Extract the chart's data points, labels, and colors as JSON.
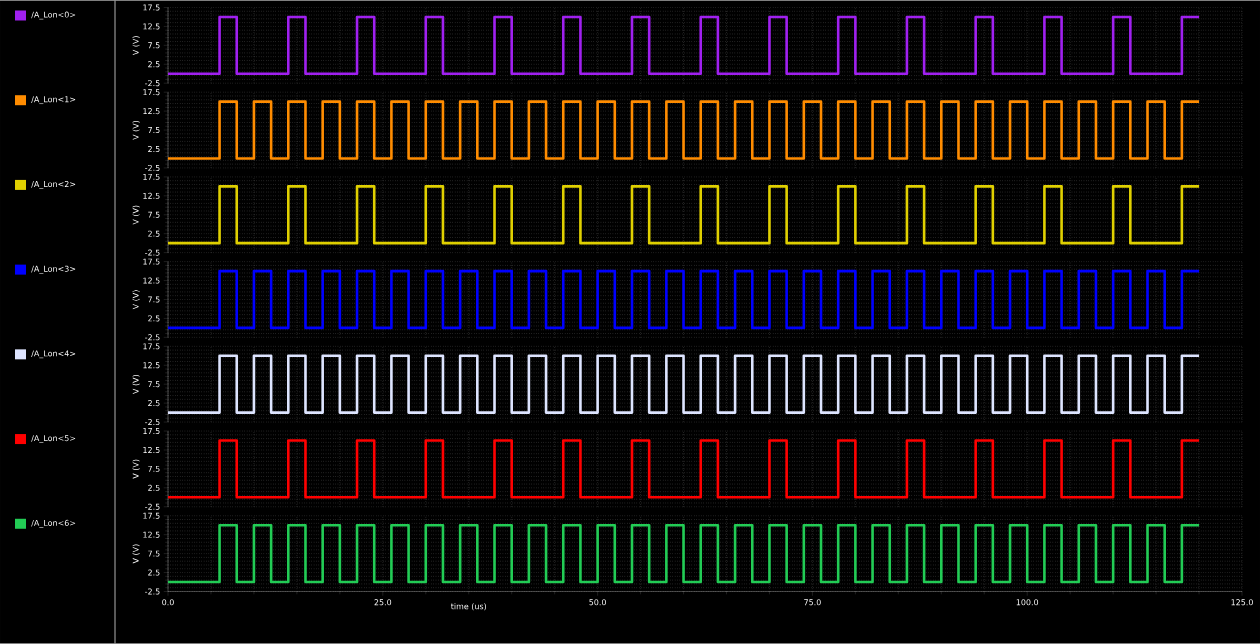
{
  "chart_data": [
    {
      "type": "step",
      "ylabel": "V (V)",
      "xlim": [
        0,
        125
      ],
      "ylim": [
        -2.5,
        17.5
      ],
      "xticks": [
        0,
        25,
        50,
        75,
        100,
        125
      ],
      "yticks": [
        -2.5,
        2.5,
        7.5,
        12.5,
        17.5
      ],
      "grid": true,
      "legend": "left",
      "tick_labels": "y",
      "series": [
        {
          "name": "/A_Lon<0>",
          "color": "#a020f0",
          "x": [
            0,
            6,
            8,
            14,
            16,
            22,
            24,
            30,
            32,
            38,
            40,
            46,
            48,
            54,
            56,
            62,
            64,
            70,
            72,
            78,
            80,
            86,
            88,
            94,
            96,
            102,
            104,
            110,
            112,
            118,
            120
          ],
          "values": [
            0,
            15,
            0,
            15,
            0,
            15,
            0,
            15,
            0,
            15,
            0,
            15,
            0,
            15,
            0,
            15,
            0,
            15,
            0,
            15,
            0,
            15,
            0,
            15,
            0,
            15,
            0,
            15,
            0,
            15,
            15
          ]
        }
      ]
    },
    {
      "type": "step",
      "ylabel": "V (V)",
      "xlim": [
        0,
        125
      ],
      "ylim": [
        -2.5,
        17.5
      ],
      "xticks": [
        0,
        25,
        50,
        75,
        100,
        125
      ],
      "yticks": [
        -2.5,
        2.5,
        7.5,
        12.5,
        17.5
      ],
      "grid": true,
      "legend": "left",
      "tick_labels": "y",
      "series": [
        {
          "name": "/A_Lon<1>",
          "color": "#ff8c00",
          "x": [
            0,
            6,
            8,
            10,
            12,
            14,
            16,
            18,
            20,
            22,
            24,
            26,
            28,
            30,
            32,
            34,
            36,
            38,
            40,
            42,
            44,
            46,
            48,
            50,
            52,
            54,
            56,
            58,
            60,
            62,
            64,
            66,
            68,
            70,
            72,
            74,
            76,
            78,
            80,
            82,
            84,
            86,
            88,
            90,
            92,
            94,
            96,
            98,
            100,
            102,
            104,
            106,
            108,
            110,
            112,
            114,
            116,
            118,
            120
          ],
          "values": [
            0,
            15,
            0,
            15,
            0,
            15,
            0,
            15,
            0,
            15,
            0,
            15,
            0,
            15,
            0,
            15,
            0,
            15,
            0,
            15,
            0,
            15,
            0,
            15,
            0,
            15,
            0,
            15,
            0,
            15,
            0,
            15,
            0,
            15,
            0,
            15,
            0,
            15,
            0,
            15,
            0,
            15,
            0,
            15,
            0,
            15,
            0,
            15,
            0,
            15,
            0,
            15,
            0,
            15,
            0,
            15,
            0,
            15,
            15
          ]
        }
      ]
    },
    {
      "type": "step",
      "ylabel": "V (V)",
      "xlim": [
        0,
        125
      ],
      "ylim": [
        -2.5,
        17.5
      ],
      "xticks": [
        0,
        25,
        50,
        75,
        100,
        125
      ],
      "yticks": [
        -2.5,
        2.5,
        7.5,
        12.5,
        17.5
      ],
      "grid": true,
      "legend": "left",
      "tick_labels": "y",
      "series": [
        {
          "name": "/A_Lon<2>",
          "color": "#e0d000",
          "x": [
            0,
            6,
            8,
            14,
            16,
            22,
            24,
            30,
            32,
            38,
            40,
            46,
            48,
            54,
            56,
            62,
            64,
            70,
            72,
            78,
            80,
            86,
            88,
            94,
            96,
            102,
            104,
            110,
            112,
            118,
            120
          ],
          "values": [
            0,
            15,
            0,
            15,
            0,
            15,
            0,
            15,
            0,
            15,
            0,
            15,
            0,
            15,
            0,
            15,
            0,
            15,
            0,
            15,
            0,
            15,
            0,
            15,
            0,
            15,
            0,
            15,
            0,
            15,
            15
          ]
        }
      ]
    },
    {
      "type": "step",
      "ylabel": "V (V)",
      "xlim": [
        0,
        125
      ],
      "ylim": [
        -2.5,
        17.5
      ],
      "xticks": [
        0,
        25,
        50,
        75,
        100,
        125
      ],
      "yticks": [
        -2.5,
        2.5,
        7.5,
        12.5,
        17.5
      ],
      "grid": true,
      "legend": "left",
      "tick_labels": "y",
      "series": [
        {
          "name": "/A_Lon<3>",
          "color": "#0000ff",
          "x": [
            0,
            6,
            8,
            10,
            12,
            14,
            16,
            18,
            20,
            22,
            24,
            26,
            28,
            30,
            32,
            34,
            36,
            38,
            40,
            42,
            44,
            46,
            48,
            50,
            52,
            54,
            56,
            58,
            60,
            62,
            64,
            66,
            68,
            70,
            72,
            74,
            76,
            78,
            80,
            82,
            84,
            86,
            88,
            90,
            92,
            94,
            96,
            98,
            100,
            102,
            104,
            106,
            108,
            110,
            112,
            114,
            116,
            118,
            120
          ],
          "values": [
            0,
            15,
            0,
            15,
            0,
            15,
            0,
            15,
            0,
            15,
            0,
            15,
            0,
            15,
            0,
            15,
            0,
            15,
            0,
            15,
            0,
            15,
            0,
            15,
            0,
            15,
            0,
            15,
            0,
            15,
            0,
            15,
            0,
            15,
            0,
            15,
            0,
            15,
            0,
            15,
            0,
            15,
            0,
            15,
            0,
            15,
            0,
            15,
            0,
            15,
            0,
            15,
            0,
            15,
            0,
            15,
            0,
            15,
            15
          ]
        }
      ]
    },
    {
      "type": "step",
      "ylabel": "V (V)",
      "xlim": [
        0,
        125
      ],
      "ylim": [
        -2.5,
        17.5
      ],
      "xticks": [
        0,
        25,
        50,
        75,
        100,
        125
      ],
      "yticks": [
        -2.5,
        2.5,
        7.5,
        12.5,
        17.5
      ],
      "grid": true,
      "legend": "left",
      "tick_labels": "y",
      "series": [
        {
          "name": "/A_Lon<4>",
          "color": "#dde4ff",
          "x": [
            0,
            6,
            8,
            10,
            12,
            14,
            16,
            18,
            20,
            22,
            24,
            26,
            28,
            30,
            32,
            34,
            36,
            38,
            40,
            42,
            44,
            46,
            48,
            50,
            52,
            54,
            56,
            58,
            60,
            62,
            64,
            66,
            68,
            70,
            72,
            74,
            76,
            78,
            80,
            82,
            84,
            86,
            88,
            90,
            92,
            94,
            96,
            98,
            100,
            102,
            104,
            106,
            108,
            110,
            112,
            114,
            116,
            118,
            120
          ],
          "values": [
            0,
            15,
            0,
            15,
            0,
            15,
            0,
            15,
            0,
            15,
            0,
            15,
            0,
            15,
            0,
            15,
            0,
            15,
            0,
            15,
            0,
            15,
            0,
            15,
            0,
            15,
            0,
            15,
            0,
            15,
            0,
            15,
            0,
            15,
            0,
            15,
            0,
            15,
            0,
            15,
            0,
            15,
            0,
            15,
            0,
            15,
            0,
            15,
            0,
            15,
            0,
            15,
            0,
            15,
            0,
            15,
            0,
            15,
            15
          ]
        }
      ]
    },
    {
      "type": "step",
      "ylabel": "V (V)",
      "xlim": [
        0,
        125
      ],
      "ylim": [
        -2.5,
        17.5
      ],
      "xticks": [
        0,
        25,
        50,
        75,
        100,
        125
      ],
      "yticks": [
        -2.5,
        2.5,
        7.5,
        12.5,
        17.5
      ],
      "grid": true,
      "legend": "left",
      "tick_labels": "y",
      "series": [
        {
          "name": "/A_Lon<5>",
          "color": "#ff0000",
          "x": [
            0,
            6,
            8,
            14,
            16,
            22,
            24,
            30,
            32,
            38,
            40,
            46,
            48,
            54,
            56,
            62,
            64,
            70,
            72,
            78,
            80,
            86,
            88,
            94,
            96,
            102,
            104,
            110,
            112,
            118,
            120
          ],
          "values": [
            0,
            15,
            0,
            15,
            0,
            15,
            0,
            15,
            0,
            15,
            0,
            15,
            0,
            15,
            0,
            15,
            0,
            15,
            0,
            15,
            0,
            15,
            0,
            15,
            0,
            15,
            0,
            15,
            0,
            15,
            15
          ]
        }
      ]
    },
    {
      "type": "step",
      "ylabel": "V (V)",
      "xlabel": "time (us)",
      "xlim": [
        0,
        125
      ],
      "ylim": [
        -2.5,
        17.5
      ],
      "xticks": [
        {
          "value": 0,
          "label": "0.0"
        },
        {
          "value": 25,
          "label": "25.0"
        },
        {
          "value": 50,
          "label": "50.0"
        },
        {
          "value": 75,
          "label": "75.0"
        },
        {
          "value": 100,
          "label": "100.0"
        },
        {
          "value": 125,
          "label": "125.0"
        }
      ],
      "yticks": [
        -2.5,
        2.5,
        7.5,
        12.5,
        17.5
      ],
      "grid": true,
      "legend": "left",
      "series": [
        {
          "name": "/A_Lon<6>",
          "color": "#22cc55",
          "x": [
            0,
            6,
            8,
            10,
            12,
            14,
            16,
            18,
            20,
            22,
            24,
            26,
            28,
            30,
            32,
            34,
            36,
            38,
            40,
            42,
            44,
            46,
            48,
            50,
            52,
            54,
            56,
            58,
            60,
            62,
            64,
            66,
            68,
            70,
            72,
            74,
            76,
            78,
            80,
            82,
            84,
            86,
            88,
            90,
            92,
            94,
            96,
            98,
            100,
            102,
            104,
            106,
            108,
            110,
            112,
            114,
            116,
            118,
            120
          ],
          "values": [
            0,
            15,
            0,
            15,
            0,
            15,
            0,
            15,
            0,
            15,
            0,
            15,
            0,
            15,
            0,
            15,
            0,
            15,
            0,
            15,
            0,
            15,
            0,
            15,
            0,
            15,
            0,
            15,
            0,
            15,
            0,
            15,
            0,
            15,
            0,
            15,
            0,
            15,
            0,
            15,
            0,
            15,
            0,
            15,
            0,
            15,
            0,
            15,
            0,
            15,
            0,
            15,
            0,
            15,
            0,
            15,
            0,
            15,
            15
          ]
        }
      ]
    }
  ]
}
